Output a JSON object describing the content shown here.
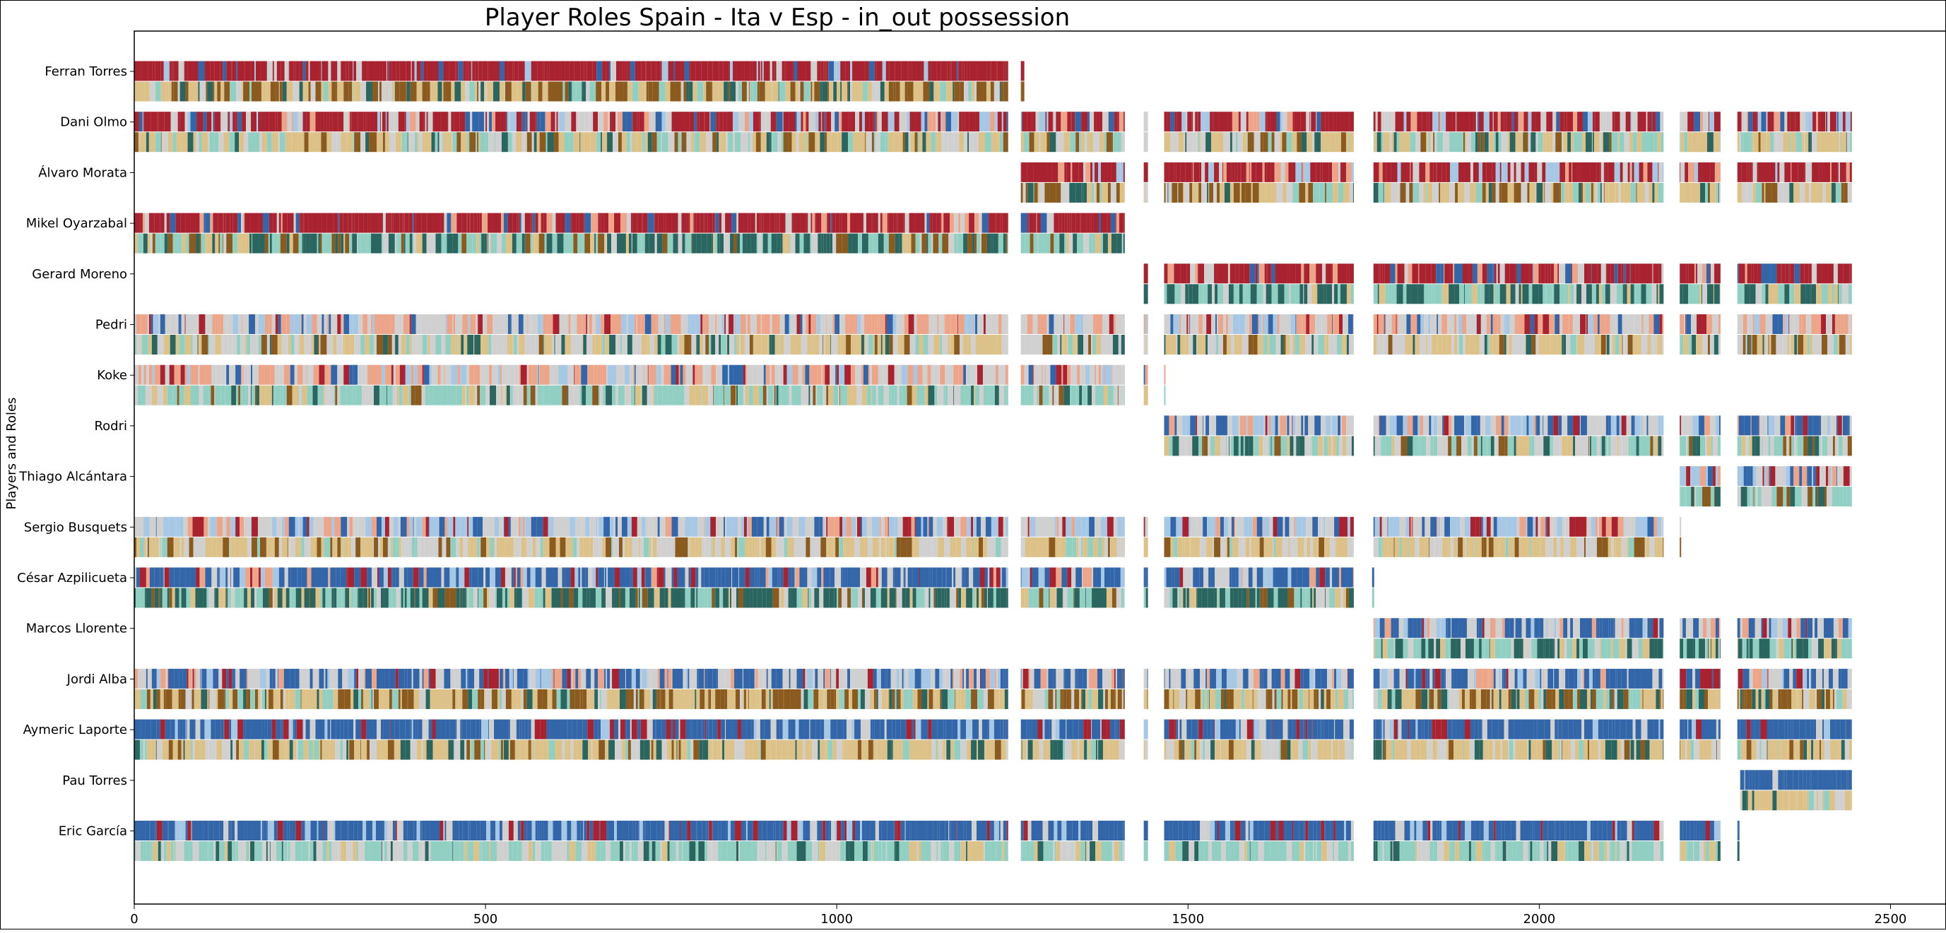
{
  "chart_data": {
    "type": "bar",
    "title": "Player Roles Spain - Ita v Esp - in_out possession",
    "xlabel": "",
    "ylabel": "Players and Roles",
    "xlim": [
      0,
      2580
    ],
    "x_ticks": [
      "0",
      "500",
      "1000",
      "1500",
      "2000",
      "2500"
    ],
    "x_tick_values": [
      0,
      500,
      1000,
      1500,
      2000,
      2500
    ],
    "grid": false,
    "legend": "none",
    "players": [
      "Ferran Torres",
      "Dani Olmo",
      "Álvaro Morata",
      "Mikel Oyarzabal",
      "Gerard Moreno",
      "Pedri",
      "Koke",
      "Rodri",
      "Thiago Alcántara",
      "Sergio Busquets",
      "César Azpilicueta",
      "Marcos Llorente",
      "Jordi Alba",
      "Aymeric Laporte",
      "Pau Torres",
      "Eric García"
    ],
    "segments": [
      [
        [
          0,
          1244
        ],
        [
          1262,
          1267
        ]
      ],
      [
        [
          0,
          1244
        ],
        [
          1262,
          1410
        ],
        [
          1437,
          1443
        ],
        [
          1466,
          1736
        ],
        [
          1764,
          2177
        ],
        [
          2200,
          2258
        ],
        [
          2282,
          2445
        ]
      ],
      [
        [
          1262,
          1410
        ],
        [
          1437,
          1443
        ],
        [
          1466,
          1736
        ],
        [
          1764,
          2177
        ],
        [
          2200,
          2258
        ],
        [
          2282,
          2445
        ]
      ],
      [
        [
          0,
          1244
        ],
        [
          1262,
          1410
        ]
      ],
      [
        [
          1437,
          1443
        ],
        [
          1466,
          1736
        ],
        [
          1764,
          2177
        ],
        [
          2200,
          2258
        ],
        [
          2282,
          2445
        ]
      ],
      [
        [
          0,
          1244
        ],
        [
          1262,
          1410
        ],
        [
          1437,
          1443
        ],
        [
          1466,
          1736
        ],
        [
          1764,
          2177
        ],
        [
          2200,
          2258
        ],
        [
          2282,
          2445
        ]
      ],
      [
        [
          0,
          1244
        ],
        [
          1262,
          1410
        ],
        [
          1437,
          1443
        ],
        [
          1466,
          1468
        ]
      ],
      [
        [
          1466,
          1736
        ],
        [
          1764,
          2177
        ],
        [
          2200,
          2258
        ],
        [
          2282,
          2445
        ]
      ],
      [
        [
          2200,
          2258
        ],
        [
          2282,
          2445
        ]
      ],
      [
        [
          0,
          1244
        ],
        [
          1262,
          1410
        ],
        [
          1437,
          1443
        ],
        [
          1466,
          1736
        ],
        [
          1764,
          2177
        ],
        [
          2200,
          2202
        ]
      ],
      [
        [
          0,
          1244
        ],
        [
          1262,
          1410
        ],
        [
          1437,
          1443
        ],
        [
          1466,
          1736
        ],
        [
          1762,
          1765
        ]
      ],
      [
        [
          1764,
          2177
        ],
        [
          2200,
          2258
        ],
        [
          2282,
          2445
        ]
      ],
      [
        [
          0,
          1244
        ],
        [
          1262,
          1410
        ],
        [
          1437,
          1443
        ],
        [
          1466,
          1736
        ],
        [
          1764,
          2177
        ],
        [
          2200,
          2258
        ],
        [
          2282,
          2445
        ]
      ],
      [
        [
          0,
          1244
        ],
        [
          1262,
          1410
        ],
        [
          1437,
          1443
        ],
        [
          1466,
          1736
        ],
        [
          1764,
          2177
        ],
        [
          2200,
          2258
        ],
        [
          2282,
          2445
        ]
      ],
      [
        [
          2286,
          2445
        ]
      ],
      [
        [
          0,
          1244
        ],
        [
          1262,
          1410
        ],
        [
          1437,
          1443
        ],
        [
          1466,
          1736
        ],
        [
          1764,
          2177
        ],
        [
          2200,
          2258
        ],
        [
          2282,
          2285
        ]
      ]
    ],
    "top_palettes": [
      [
        0,
        0,
        0,
        0,
        0,
        0,
        0,
        0,
        1,
        3,
        2
      ],
      [
        0,
        0,
        0,
        0,
        0,
        1,
        1,
        4,
        3,
        2
      ],
      [
        0,
        0,
        0,
        0,
        0,
        0,
        0,
        1,
        4,
        3
      ],
      [
        0,
        0,
        0,
        0,
        0,
        0,
        0,
        1,
        4,
        2
      ],
      [
        0,
        0,
        0,
        0,
        0,
        0,
        1,
        4,
        2
      ],
      [
        1,
        1,
        1,
        4,
        4,
        4,
        0,
        2,
        3
      ],
      [
        1,
        1,
        1,
        4,
        4,
        4,
        0,
        2,
        3
      ],
      [
        1,
        1,
        1,
        3,
        3,
        2,
        2,
        2,
        4,
        0
      ],
      [
        1,
        1,
        3,
        3,
        2,
        2,
        0,
        4
      ],
      [
        1,
        1,
        1,
        3,
        3,
        3,
        2,
        0,
        4
      ],
      [
        2,
        2,
        2,
        2,
        2,
        1,
        1,
        3,
        0,
        4
      ],
      [
        2,
        2,
        2,
        2,
        1,
        1,
        1,
        3,
        0,
        4
      ],
      [
        2,
        2,
        2,
        2,
        1,
        1,
        1,
        3,
        0,
        4
      ],
      [
        2,
        2,
        2,
        2,
        2,
        2,
        1,
        3,
        0
      ],
      [
        2,
        2,
        2,
        2,
        2,
        2,
        1
      ],
      [
        2,
        2,
        2,
        2,
        2,
        2,
        1,
        3,
        0
      ]
    ],
    "bottom_palettes": [
      [
        6,
        6,
        6,
        5,
        5,
        5,
        1,
        7,
        8
      ],
      [
        5,
        5,
        5,
        7,
        7,
        1,
        1,
        6,
        8
      ],
      [
        6,
        6,
        5,
        5,
        5,
        1,
        1,
        7,
        8
      ],
      [
        7,
        7,
        7,
        8,
        8,
        8,
        1,
        5,
        6
      ],
      [
        8,
        8,
        8,
        7,
        7,
        7,
        1,
        5
      ],
      [
        5,
        5,
        5,
        1,
        1,
        1,
        6,
        7,
        8
      ],
      [
        7,
        7,
        7,
        7,
        1,
        1,
        8,
        5,
        6
      ],
      [
        7,
        7,
        7,
        1,
        1,
        8,
        5,
        6
      ],
      [
        7,
        7,
        7,
        1,
        1,
        8,
        6
      ],
      [
        5,
        5,
        5,
        5,
        1,
        1,
        1,
        6,
        7
      ],
      [
        8,
        8,
        8,
        8,
        7,
        7,
        1,
        5,
        6
      ],
      [
        8,
        8,
        8,
        7,
        7,
        7,
        1,
        5
      ],
      [
        6,
        6,
        6,
        5,
        5,
        5,
        1,
        7,
        8
      ],
      [
        5,
        5,
        5,
        5,
        1,
        1,
        7,
        6,
        8
      ],
      [
        5,
        5,
        5,
        5,
        1,
        7,
        8
      ],
      [
        7,
        7,
        7,
        7,
        1,
        1,
        5,
        8
      ]
    ],
    "palette": [
      "#a8232f",
      "#d0d0d0",
      "#3266a8",
      "#a6c8e5",
      "#eda58a",
      "#dcc288",
      "#8a5a1e",
      "#92cfc3",
      "#2a6560"
    ]
  }
}
